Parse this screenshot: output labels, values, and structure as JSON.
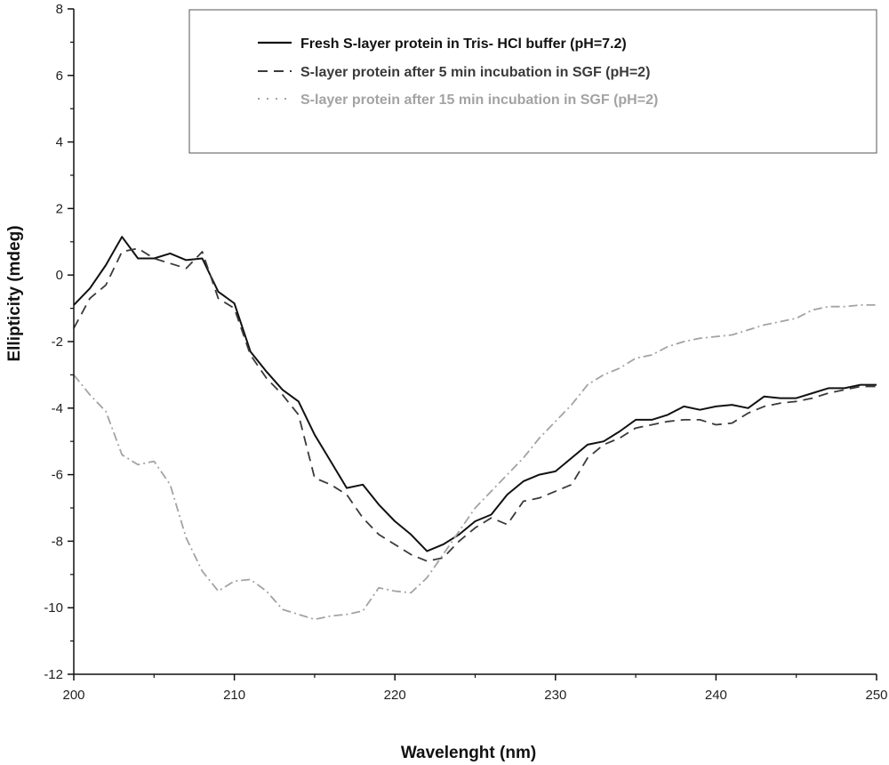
{
  "chart_data": {
    "type": "line",
    "xlabel": "Wavelenght (nm)",
    "ylabel": "Ellipticity (mdeg)",
    "xlim": [
      200,
      250
    ],
    "ylim": [
      -12,
      8
    ],
    "x_ticks": [
      200,
      210,
      220,
      230,
      240,
      250
    ],
    "y_ticks": [
      -12,
      -10,
      -8,
      -6,
      -4,
      -2,
      0,
      2,
      4,
      6,
      8
    ],
    "grid": false,
    "legend_position": "top-right",
    "series": [
      {
        "name": "Fresh S-layer protein in Tris- HCl buffer (pH=7.2)",
        "color": "#111111",
        "style": "solid",
        "x": [
          200,
          201,
          202,
          203,
          204,
          205,
          206,
          207,
          208,
          209,
          210,
          211,
          212,
          213,
          214,
          215,
          216,
          217,
          218,
          219,
          220,
          221,
          222,
          223,
          224,
          225,
          226,
          227,
          228,
          229,
          230,
          231,
          232,
          233,
          234,
          235,
          236,
          237,
          238,
          239,
          240,
          241,
          242,
          243,
          244,
          245,
          246,
          247,
          248,
          249,
          250
        ],
        "y": [
          -0.9,
          -0.4,
          0.3,
          1.15,
          0.5,
          0.5,
          0.65,
          0.45,
          0.5,
          -0.5,
          -0.85,
          -2.3,
          -2.9,
          -3.45,
          -3.8,
          -4.8,
          -5.6,
          -6.4,
          -6.3,
          -6.9,
          -7.4,
          -7.8,
          -8.3,
          -8.1,
          -7.8,
          -7.4,
          -7.2,
          -6.6,
          -6.2,
          -6.0,
          -5.9,
          -5.5,
          -5.1,
          -5.0,
          -4.7,
          -4.35,
          -4.35,
          -4.2,
          -3.95,
          -4.05,
          -3.95,
          -3.9,
          -4.0,
          -3.65,
          -3.7,
          -3.7,
          -3.55,
          -3.4,
          -3.4,
          -3.3,
          -3.3
        ]
      },
      {
        "name": "S-layer protein after 5 min incubation in SGF (pH=2)",
        "color": "#3a3a3a",
        "style": "dashed",
        "x": [
          200,
          201,
          202,
          203,
          204,
          205,
          206,
          207,
          208,
          209,
          210,
          211,
          212,
          213,
          214,
          215,
          216,
          217,
          218,
          219,
          220,
          221,
          222,
          223,
          224,
          225,
          226,
          227,
          228,
          229,
          230,
          231,
          232,
          233,
          234,
          235,
          236,
          237,
          238,
          239,
          240,
          241,
          242,
          243,
          244,
          245,
          246,
          247,
          248,
          249,
          250
        ],
        "y": [
          -1.6,
          -0.7,
          -0.3,
          0.7,
          0.8,
          0.5,
          0.35,
          0.2,
          0.7,
          -0.7,
          -1.0,
          -2.4,
          -3.1,
          -3.6,
          -4.2,
          -6.1,
          -6.3,
          -6.6,
          -7.3,
          -7.8,
          -8.1,
          -8.4,
          -8.6,
          -8.5,
          -8.0,
          -7.6,
          -7.3,
          -7.5,
          -6.8,
          -6.7,
          -6.5,
          -6.3,
          -5.5,
          -5.1,
          -4.9,
          -4.6,
          -4.5,
          -4.4,
          -4.35,
          -4.35,
          -4.5,
          -4.45,
          -4.15,
          -3.95,
          -3.85,
          -3.8,
          -3.7,
          -3.55,
          -3.45,
          -3.35,
          -3.35
        ]
      },
      {
        "name": "S-layer protein after 15 min incubation in SGF (pH=2)",
        "color": "#a3a3a3",
        "style": "dashdot",
        "x": [
          200,
          201,
          202,
          203,
          204,
          205,
          206,
          207,
          208,
          209,
          210,
          211,
          212,
          213,
          214,
          215,
          216,
          217,
          218,
          219,
          220,
          221,
          222,
          223,
          224,
          225,
          226,
          227,
          228,
          229,
          230,
          231,
          232,
          233,
          234,
          235,
          236,
          237,
          238,
          239,
          240,
          241,
          242,
          243,
          244,
          245,
          246,
          247,
          248,
          249,
          250
        ],
        "y": [
          -3.0,
          -3.6,
          -4.1,
          -5.4,
          -5.7,
          -5.6,
          -6.3,
          -7.9,
          -8.9,
          -9.5,
          -9.2,
          -9.15,
          -9.5,
          -10.05,
          -10.2,
          -10.35,
          -10.25,
          -10.2,
          -10.1,
          -9.4,
          -9.5,
          -9.55,
          -9.1,
          -8.4,
          -7.7,
          -7.0,
          -6.5,
          -6.0,
          -5.5,
          -4.9,
          -4.4,
          -3.9,
          -3.3,
          -3.0,
          -2.8,
          -2.5,
          -2.4,
          -2.15,
          -2.0,
          -1.9,
          -1.85,
          -1.8,
          -1.65,
          -1.5,
          -1.4,
          -1.3,
          -1.05,
          -0.95,
          -0.95,
          -0.9,
          -0.9
        ]
      }
    ]
  }
}
